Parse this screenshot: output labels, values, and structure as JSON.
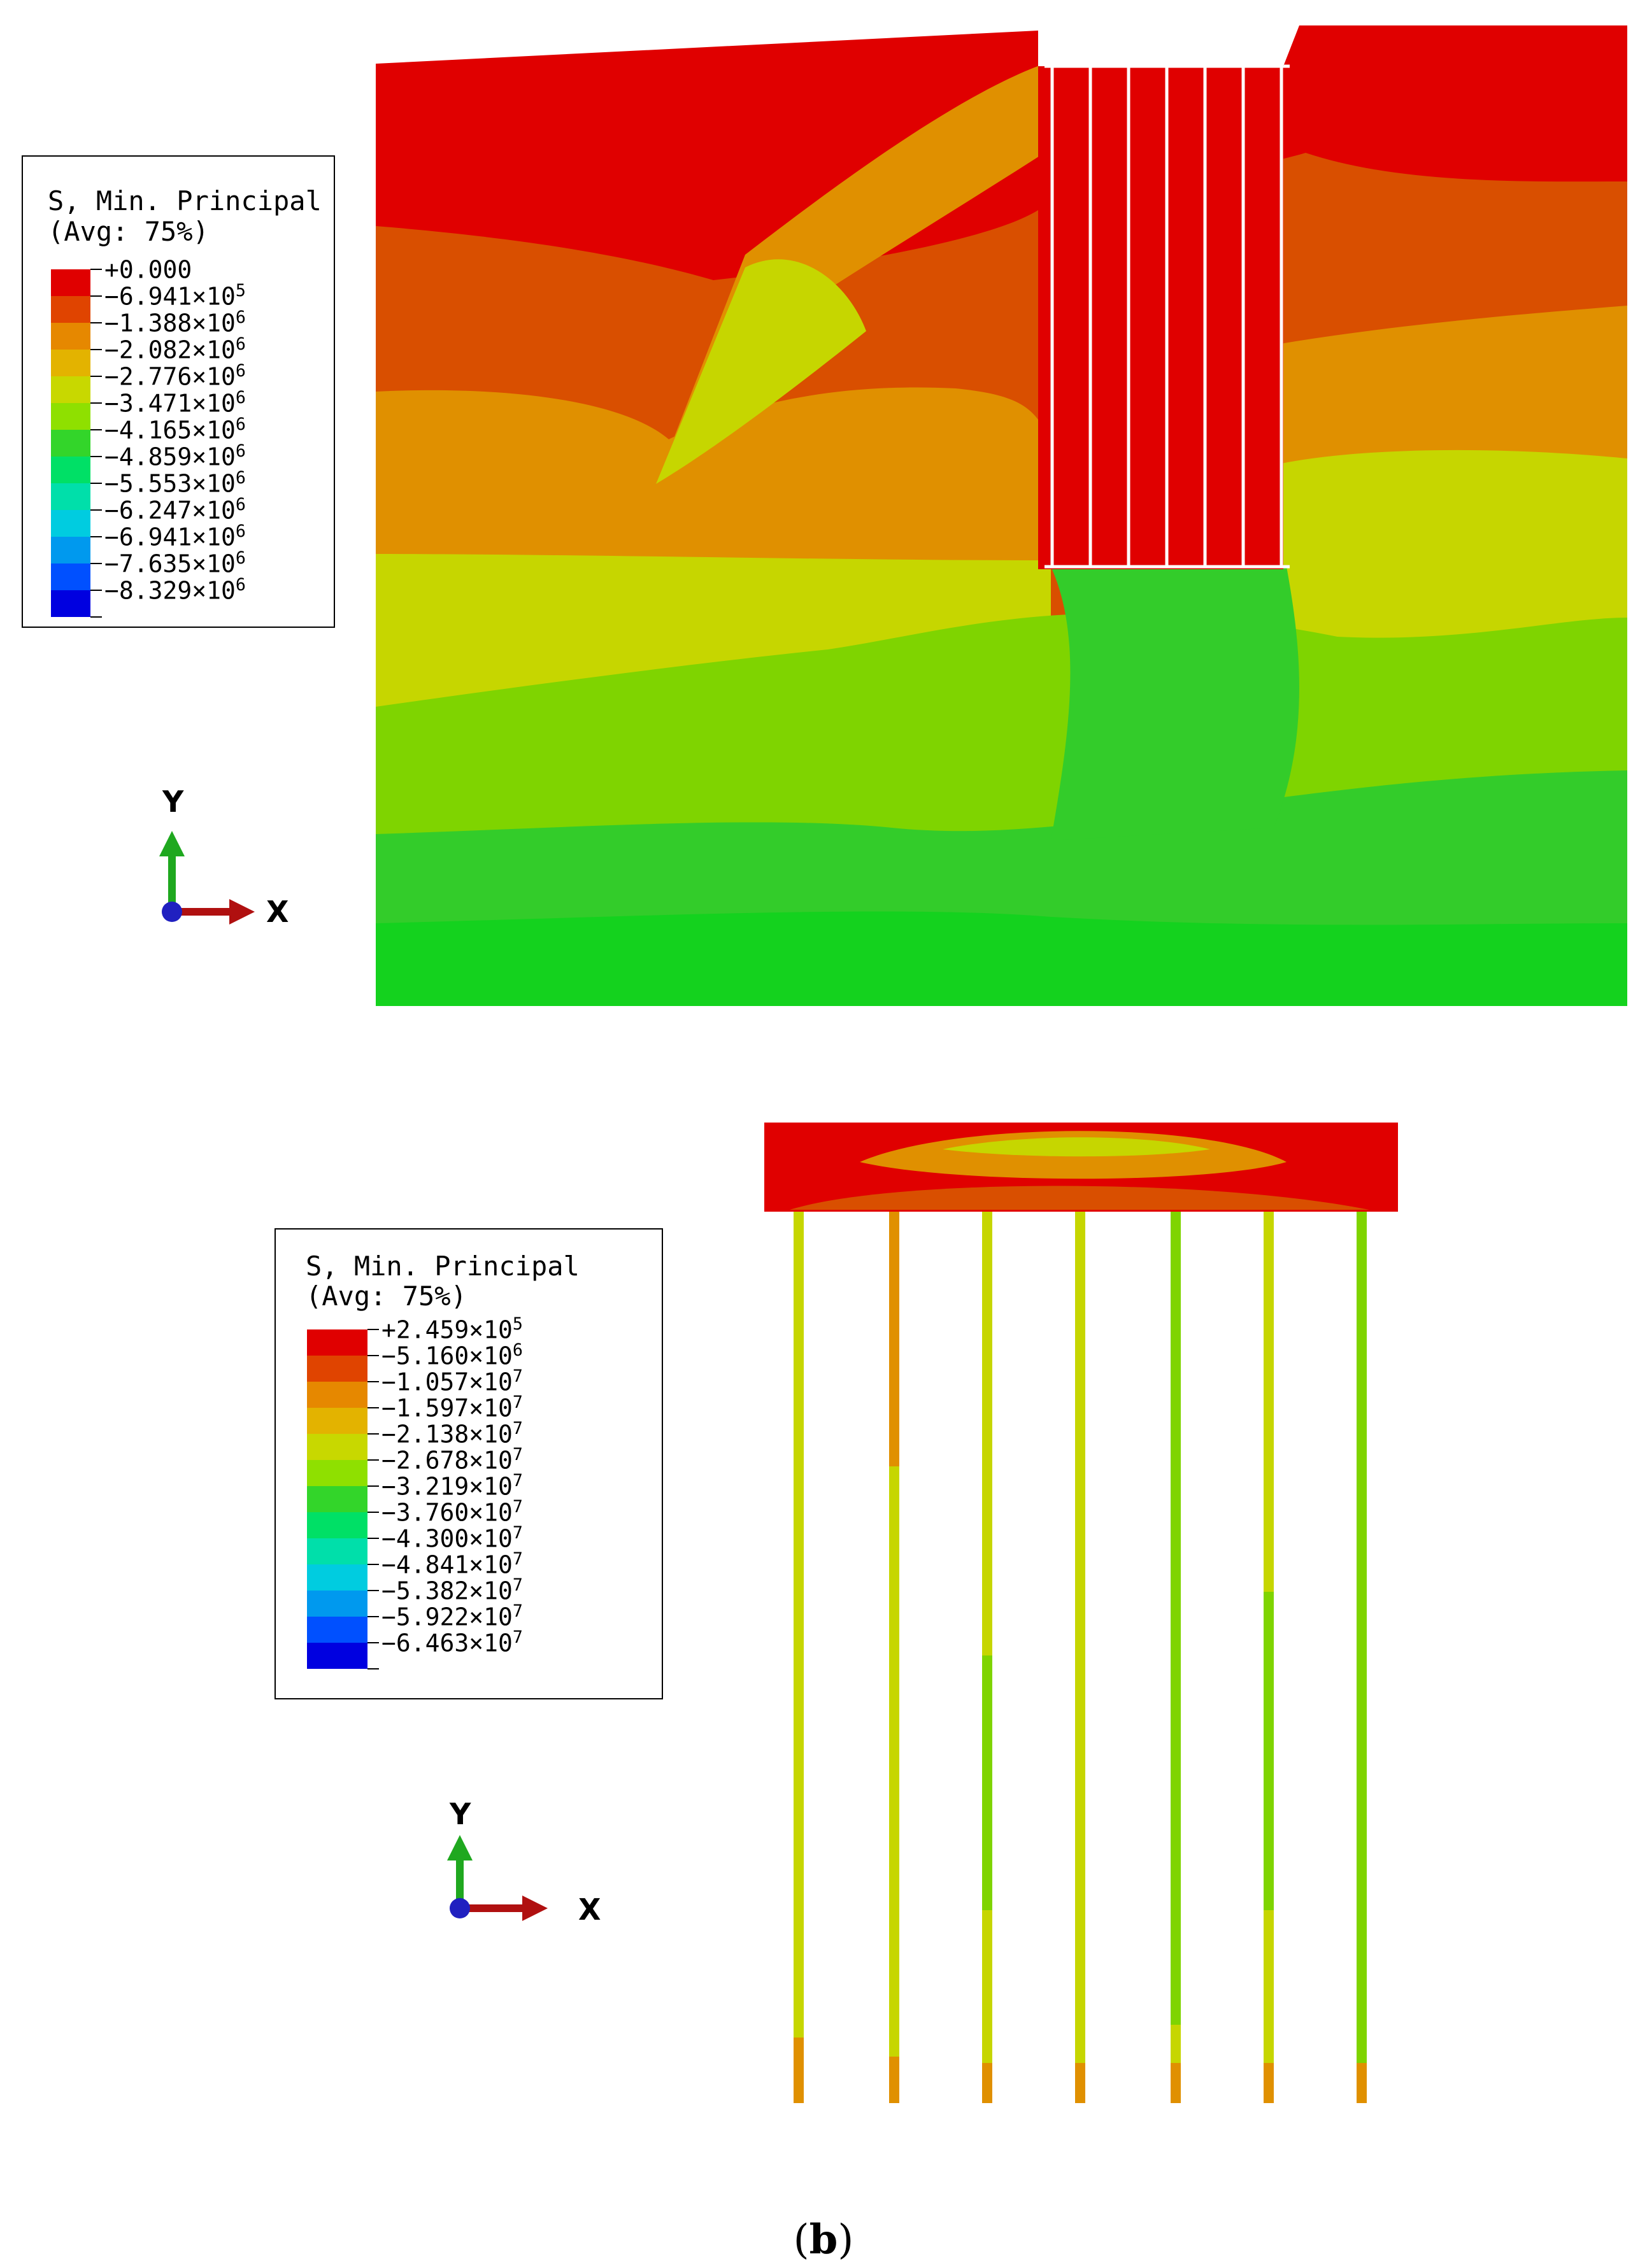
{
  "caption": {
    "open": "(",
    "letter": "b",
    "close": ")"
  },
  "panel_top": {
    "legend": {
      "title_line1": "S, Min. Principal",
      "title_line2": "(Avg: 75%)",
      "entries": [
        {
          "label": "+0.000",
          "exp": "",
          "color": "#e00000"
        },
        {
          "label": "−6.941×10",
          "exp": "5",
          "color": "#e04400"
        },
        {
          "label": "−1.388×10",
          "exp": "6",
          "color": "#e68800"
        },
        {
          "label": "−2.082×10",
          "exp": "6",
          "color": "#e3b300"
        },
        {
          "label": "−2.776×10",
          "exp": "6",
          "color": "#c8d800"
        },
        {
          "label": "−3.471×10",
          "exp": "6",
          "color": "#8fe000"
        },
        {
          "label": "−4.165×10",
          "exp": "6",
          "color": "#33d52a"
        },
        {
          "label": "−4.859×10",
          "exp": "6",
          "color": "#00e066"
        },
        {
          "label": "−5.553×10",
          "exp": "6",
          "color": "#00dfaa"
        },
        {
          "label": "−6.247×10",
          "exp": "6",
          "color": "#00cce0"
        },
        {
          "label": "−6.941×10",
          "exp": "6",
          "color": "#0099ee"
        },
        {
          "label": "−7.635×10",
          "exp": "6",
          "color": "#0050ff"
        },
        {
          "label": "−8.329×10",
          "exp": "6",
          "color": "#0000e0"
        }
      ]
    },
    "triad": {
      "y_label": "Y",
      "x_label": "X"
    }
  },
  "panel_bottom": {
    "legend": {
      "title_line1": "S, Min. Principal",
      "title_line2": "(Avg: 75%)",
      "entries": [
        {
          "label": "+2.459×10",
          "exp": "5",
          "color": "#e00000"
        },
        {
          "label": "−5.160×10",
          "exp": "6",
          "color": "#e04400"
        },
        {
          "label": "−1.057×10",
          "exp": "7",
          "color": "#e68800"
        },
        {
          "label": "−1.597×10",
          "exp": "7",
          "color": "#e3b300"
        },
        {
          "label": "−2.138×10",
          "exp": "7",
          "color": "#c8d800"
        },
        {
          "label": "−2.678×10",
          "exp": "7",
          "color": "#8fe000"
        },
        {
          "label": "−3.219×10",
          "exp": "7",
          "color": "#33d52a"
        },
        {
          "label": "−3.760×10",
          "exp": "7",
          "color": "#00e066"
        },
        {
          "label": "−4.300×10",
          "exp": "7",
          "color": "#00dfaa"
        },
        {
          "label": "−4.841×10",
          "exp": "7",
          "color": "#00cce0"
        },
        {
          "label": "−5.382×10",
          "exp": "7",
          "color": "#0099ee"
        },
        {
          "label": "−5.922×10",
          "exp": "7",
          "color": "#0050ff"
        },
        {
          "label": "−6.463×10",
          "exp": "7",
          "color": "#0000e0"
        }
      ]
    },
    "triad": {
      "y_label": "Y",
      "x_label": "X"
    }
  }
}
